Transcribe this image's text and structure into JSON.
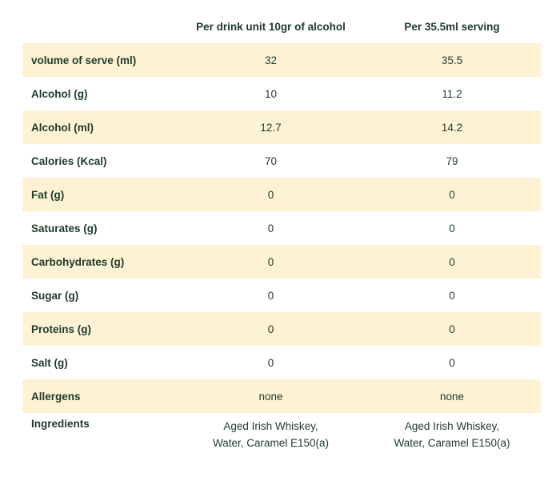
{
  "table": {
    "headers": [
      "",
      "Per drink unit 10gr of alcohol",
      "Per 35.5ml serving"
    ],
    "rows": [
      {
        "label": "volume of serve (ml)",
        "per_unit": "32",
        "per_serving": "35.5"
      },
      {
        "label": "Alcohol (g)",
        "per_unit": "10",
        "per_serving": "11.2"
      },
      {
        "label": "Alcohol (ml)",
        "per_unit": "12.7",
        "per_serving": "14.2"
      },
      {
        "label": "Calories (Kcal)",
        "per_unit": "70",
        "per_serving": "79"
      },
      {
        "label": "Fat (g)",
        "per_unit": "0",
        "per_serving": "0"
      },
      {
        "label": "Saturates (g)",
        "per_unit": "0",
        "per_serving": "0"
      },
      {
        "label": "Carbohydrates (g)",
        "per_unit": "0",
        "per_serving": "0"
      },
      {
        "label": "Sugar (g)",
        "per_unit": "0",
        "per_serving": "0"
      },
      {
        "label": "Proteins (g)",
        "per_unit": "0",
        "per_serving": "0"
      },
      {
        "label": "Salt (g)",
        "per_unit": "0",
        "per_serving": "0"
      },
      {
        "label": "Allergens",
        "per_unit": "none",
        "per_serving": "none"
      }
    ],
    "ingredients": {
      "label": "Ingredients",
      "per_unit": [
        "Aged Irish Whiskey,",
        "Water, Caramel E150(a)"
      ],
      "per_serving": [
        "Aged Irish Whiskey,",
        "Water, Caramel E150(a)"
      ]
    }
  },
  "colors": {
    "text": "#1f3a2b",
    "row_shade": "#fdf3d4"
  }
}
